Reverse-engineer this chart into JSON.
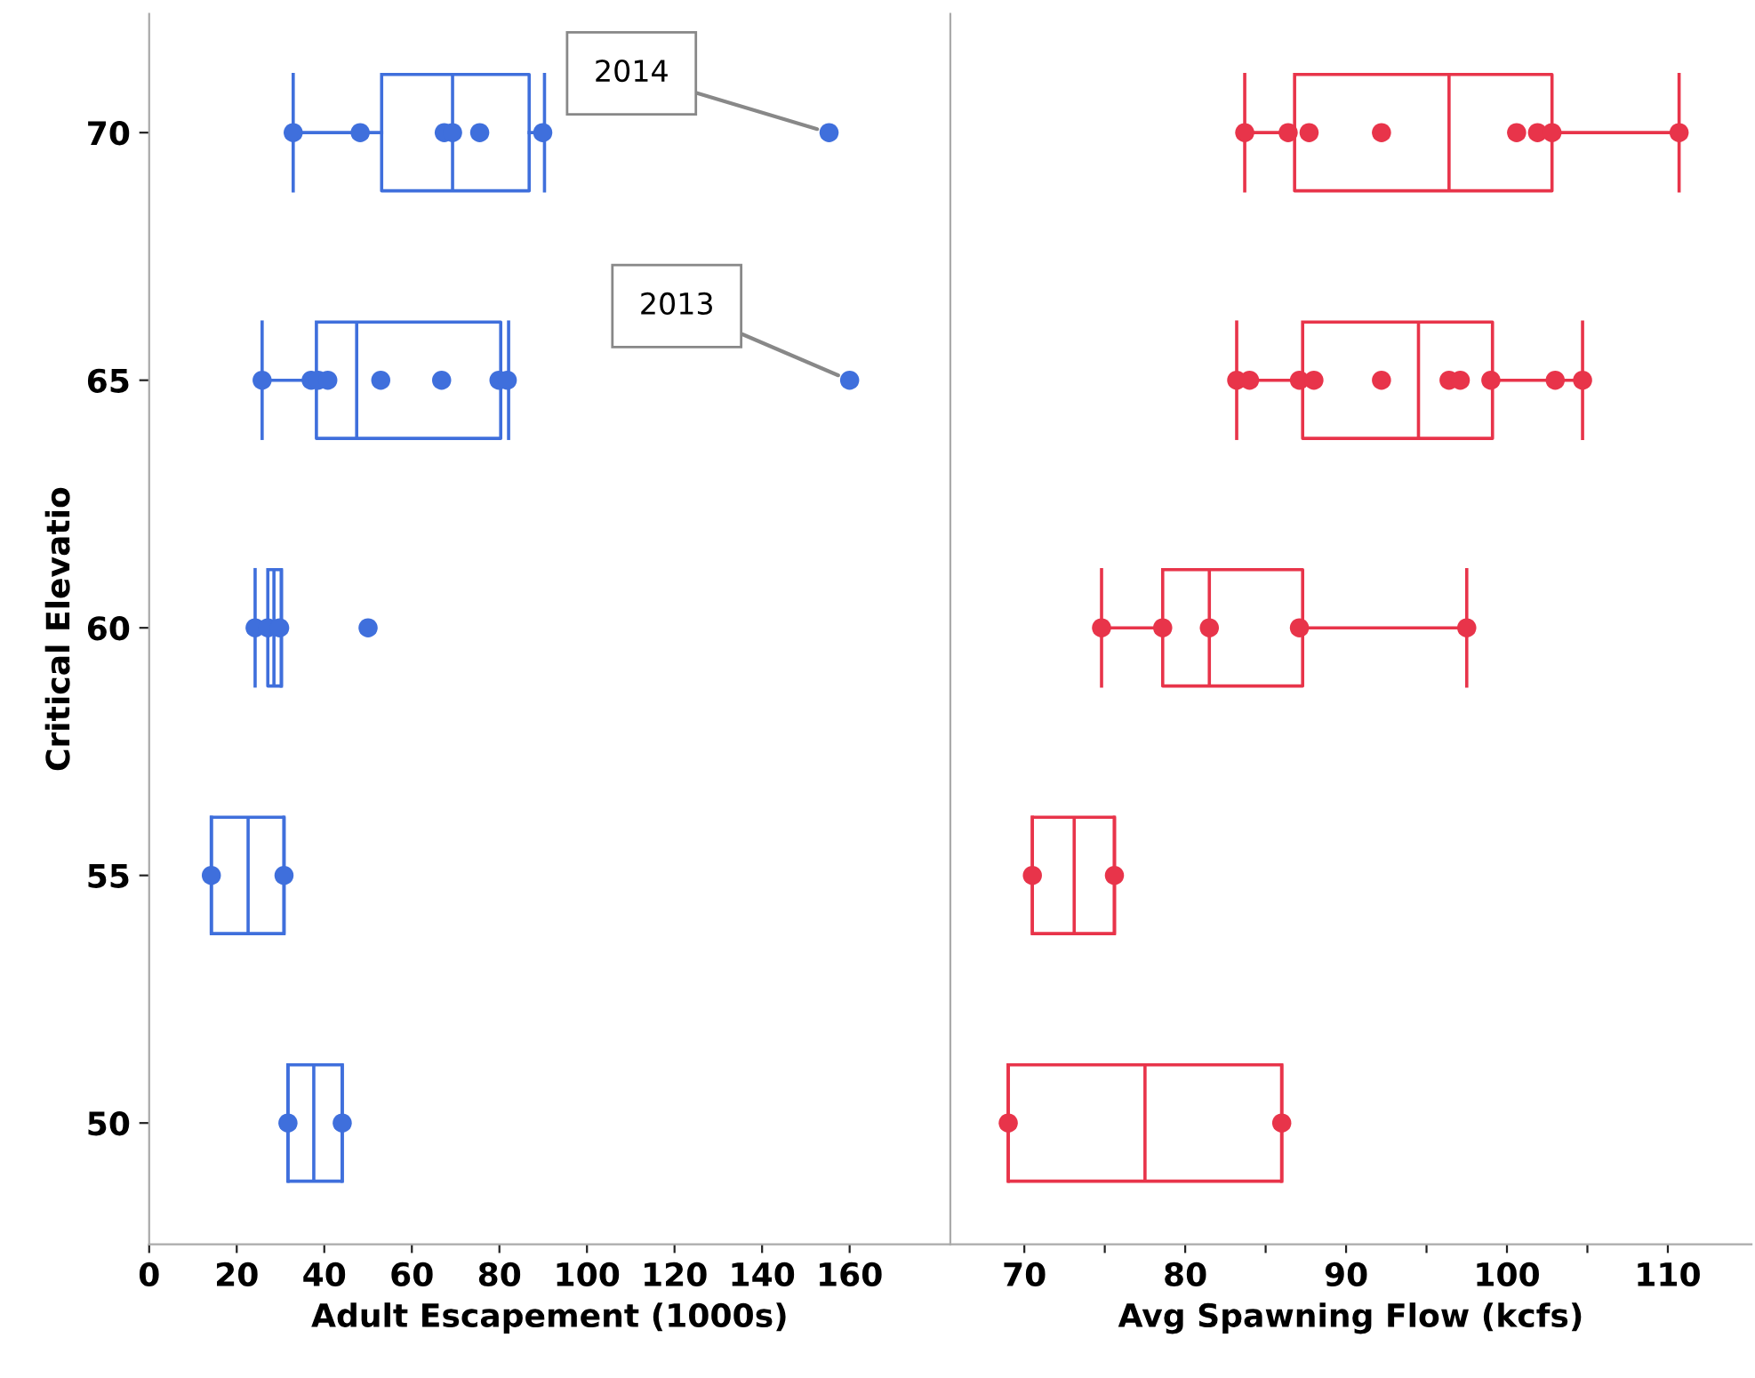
{
  "chart_data": [
    {
      "type": "box",
      "orientation": "horizontal",
      "categories": [
        "70",
        "65",
        "60",
        "55",
        "50"
      ],
      "ylabel": "Critical Elevatio",
      "xlabel": "Adult Escapement (1000s)",
      "xlim": [
        0,
        183
      ],
      "xticks": [
        0,
        20,
        40,
        60,
        80,
        100,
        120,
        140,
        160
      ],
      "series": [
        {
          "color": "#3f6fdc",
          "boxes": [
            {
              "low": 32.9,
              "q1": 53.1,
              "median": 69.3,
              "q3": 86.8,
              "high": 90.3
            },
            {
              "low": 25.8,
              "q1": 38.2,
              "median": 47.4,
              "q3": 80.3,
              "high": 82.1
            },
            {
              "low": 24.2,
              "q1": 27.1,
              "median": 28.5,
              "q3": 30.2,
              "high": 30.2
            },
            {
              "low": 14.2,
              "q1": 14.2,
              "median": 22.6,
              "q3": 30.8,
              "high": 30.8
            },
            {
              "low": 31.7,
              "q1": 31.7,
              "median": 37.6,
              "q3": 44.1,
              "high": 44.1
            }
          ]
        },
        {
          "type": "scatter",
          "color": "#3f6fdc",
          "marker": "circle",
          "x": [
            "70",
            "70",
            "70",
            "70",
            "70",
            "70",
            "70",
            "65",
            "65",
            "65",
            "65",
            "65",
            "65",
            "65",
            "65",
            "65",
            "60",
            "60",
            "60",
            "60",
            "55",
            "55",
            "50",
            "50"
          ],
          "values": [
            32.9,
            48.2,
            67.4,
            69.3,
            75.5,
            89.9,
            155.3,
            25.8,
            37.0,
            38.6,
            40.8,
            52.9,
            66.8,
            79.9,
            81.8,
            160.0,
            24.2,
            27.1,
            29.8,
            50.0,
            14.2,
            30.8,
            31.7,
            44.1
          ]
        }
      ],
      "annotations": [
        {
          "text": "2014",
          "x": 155.3,
          "y": "70"
        },
        {
          "text": "2013",
          "x": 160.0,
          "y": "65"
        }
      ]
    },
    {
      "type": "box",
      "orientation": "horizontal",
      "categories": [
        "70",
        "65",
        "60",
        "55",
        "50"
      ],
      "tick_labels": "x",
      "xlabel": "Avg Spawning Flow (kcfs)",
      "xlim": [
        65.4,
        115.2
      ],
      "xticks": [
        70,
        {
          "value": 75,
          "label": null
        },
        80,
        {
          "value": 85,
          "label": null
        },
        90,
        {
          "value": 95,
          "label": null
        },
        100,
        {
          "value": 105,
          "label": null
        },
        110
      ],
      "series": [
        {
          "color": "#e8344a",
          "boxes": [
            {
              "low": 83.7,
              "q1": 86.8,
              "median": 96.4,
              "q3": 102.8,
              "high": 110.7
            },
            {
              "low": 83.2,
              "q1": 87.3,
              "median": 94.5,
              "q3": 99.1,
              "high": 104.7
            },
            {
              "low": 74.8,
              "q1": 78.6,
              "median": 81.5,
              "q3": 87.3,
              "high": 97.5
            },
            {
              "low": 70.5,
              "q1": 70.5,
              "median": 73.1,
              "q3": 75.6,
              "high": 75.6
            },
            {
              "low": 69.0,
              "q1": 69.0,
              "median": 77.5,
              "q3": 86.0,
              "high": 86.0
            }
          ]
        },
        {
          "type": "scatter",
          "color": "#e8344a",
          "marker": "circle",
          "x": [
            "70",
            "70",
            "70",
            "70",
            "70",
            "70",
            "70",
            "70",
            "65",
            "65",
            "65",
            "65",
            "65",
            "65",
            "65",
            "65",
            "65",
            "65",
            "60",
            "60",
            "60",
            "60",
            "60",
            "55",
            "55",
            "50",
            "50"
          ],
          "values": [
            83.7,
            86.4,
            87.7,
            92.2,
            100.6,
            101.9,
            102.8,
            110.7,
            83.2,
            84.0,
            87.1,
            88.0,
            92.2,
            96.4,
            97.1,
            99.0,
            103.0,
            104.7,
            74.8,
            78.6,
            81.5,
            87.1,
            97.5,
            70.5,
            75.6,
            69.0,
            86.0
          ]
        }
      ]
    }
  ]
}
